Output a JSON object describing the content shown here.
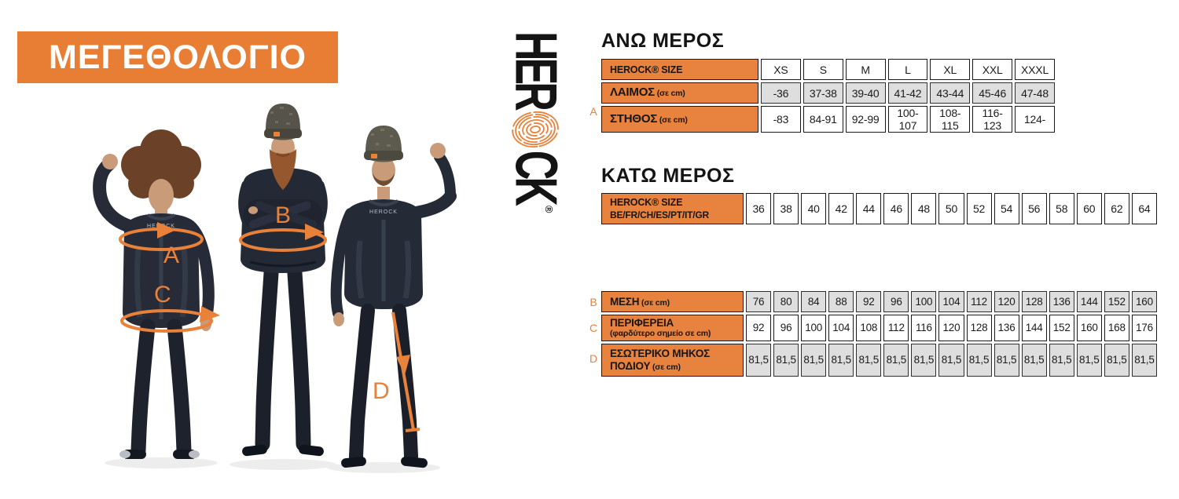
{
  "colors": {
    "accent": "#e8813a",
    "banner_orange": "#e87e33",
    "label_orange": "#e8823f",
    "cell_gray": "#dedede"
  },
  "banner": {
    "title": "ΜΕΓΕΘΟΛΟΓΙΟ"
  },
  "logo": {
    "top": "HER",
    "bottom": "CK",
    "reg": "®",
    "brand": "HEROCK",
    "fingerprint_icon": "fingerprint-icon"
  },
  "figures": {
    "annotations": {
      "a": "A",
      "b": "B",
      "c": "C",
      "d": "D"
    }
  },
  "upper_table": {
    "title": "ΑΝΩ ΜΕΡΟΣ",
    "size_label": "HEROCK® SIZE",
    "sizes": [
      "XS",
      "S",
      "M",
      "L",
      "XL",
      "XXL",
      "XXXL"
    ],
    "rows": [
      {
        "marker": "",
        "label": "ΛΑΙΜΟΣ",
        "unit": "(σε cm)",
        "shade": "gray",
        "values": [
          "-36",
          "37-38",
          "39-40",
          "41-42",
          "43-44",
          "45-46",
          "47-48"
        ]
      },
      {
        "marker": "A",
        "label": "ΣΤΗΘΟΣ",
        "unit": "(σε cm)",
        "shade": "white",
        "values": [
          "-83",
          "84-91",
          "92-99",
          "100-107",
          "108-115",
          "116-123",
          "124-"
        ]
      }
    ]
  },
  "lower_table": {
    "title": "ΚΑΤΩ ΜΕΡΟΣ",
    "size_label": "HEROCK® SIZE",
    "size_sublabel": "BE/FR/CH/ES/PT/IT/GR",
    "sizes": [
      "36",
      "38",
      "40",
      "42",
      "44",
      "46",
      "48",
      "50",
      "52",
      "54",
      "56",
      "58",
      "60",
      "62",
      "64"
    ],
    "rows": [
      {
        "marker": "B",
        "label": "ΜΕΣΗ",
        "unit": "(σε cm)",
        "shade": "gray",
        "values": [
          "76",
          "80",
          "84",
          "88",
          "92",
          "96",
          "100",
          "104",
          "112",
          "120",
          "128",
          "136",
          "144",
          "152",
          "160"
        ]
      },
      {
        "marker": "C",
        "label": "ΠΕΡΙΦΕΡΕΙΑ",
        "unit": "(φαρδύτερο σημείο σε cm)",
        "shade": "white",
        "values": [
          "92",
          "96",
          "100",
          "104",
          "108",
          "112",
          "116",
          "120",
          "128",
          "136",
          "144",
          "152",
          "160",
          "168",
          "176"
        ]
      },
      {
        "marker": "D",
        "label": "ΕΣΩΤΕΡΙΚΟ ΜΗΚΟΣ ΠΟΔΙΟΥ",
        "unit": "(σε cm)",
        "shade": "gray",
        "values": [
          "81,5",
          "81,5",
          "81,5",
          "81,5",
          "81,5",
          "81,5",
          "81,5",
          "81,5",
          "81,5",
          "81,5",
          "81,5",
          "81,5",
          "81,5",
          "81,5",
          "81,5"
        ]
      }
    ]
  }
}
